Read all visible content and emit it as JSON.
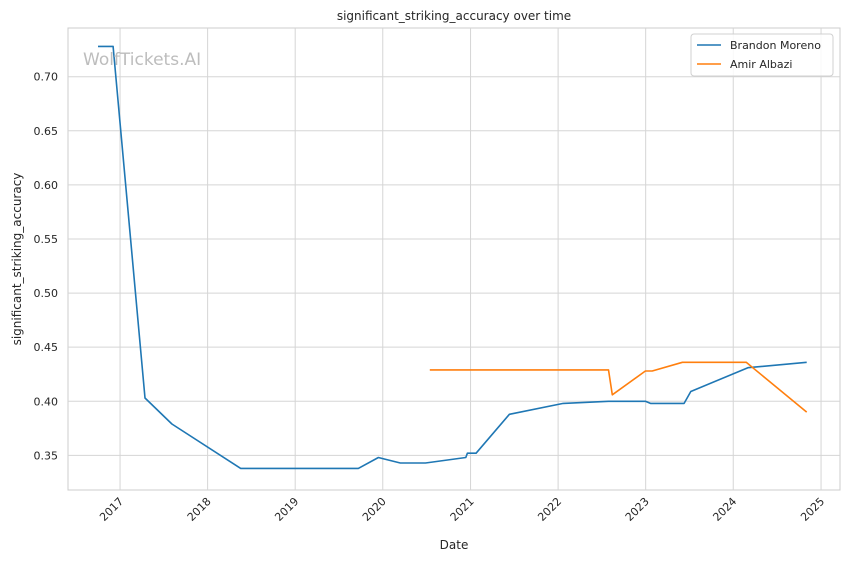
{
  "chart_data": {
    "type": "line",
    "title": "significant_striking_accuracy over time",
    "xlabel": "Date",
    "ylabel": "significant_striking_accuracy",
    "watermark": "WolfTickets.AI",
    "x_axis_type": "date",
    "xlim": [
      "2016-05-29",
      "2025-03-21"
    ],
    "ylim": [
      0.318,
      0.745
    ],
    "x_ticks": [
      "2017",
      "2018",
      "2019",
      "2020",
      "2021",
      "2022",
      "2023",
      "2024",
      "2025"
    ],
    "y_ticks": [
      0.35,
      0.4,
      0.45,
      0.5,
      0.55,
      0.6,
      0.65,
      0.7
    ],
    "y_tick_labels": [
      "0.35",
      "0.40",
      "0.45",
      "0.50",
      "0.55",
      "0.60",
      "0.65",
      "0.70"
    ],
    "grid": true,
    "legend_position": "top-right",
    "series": [
      {
        "name": "Brandon Moreno",
        "color": "#1f77b4",
        "points": [
          [
            "2016-10-01",
            0.728
          ],
          [
            "2016-12-03",
            0.728
          ],
          [
            "2017-04-15",
            0.403
          ],
          [
            "2017-08-05",
            0.379
          ],
          [
            "2018-05-19",
            0.338
          ],
          [
            "2019-09-21",
            0.338
          ],
          [
            "2019-12-14",
            0.348
          ],
          [
            "2020-03-14",
            0.343
          ],
          [
            "2020-06-27",
            0.343
          ],
          [
            "2020-12-12",
            0.348
          ],
          [
            "2020-12-19",
            0.352
          ],
          [
            "2021-01-24",
            0.352
          ],
          [
            "2021-06-12",
            0.388
          ],
          [
            "2022-01-22",
            0.398
          ],
          [
            "2022-07-30",
            0.4
          ],
          [
            "2022-12-31",
            0.4
          ],
          [
            "2023-01-21",
            0.398
          ],
          [
            "2023-06-10",
            0.398
          ],
          [
            "2023-07-08",
            0.409
          ],
          [
            "2024-03-02",
            0.431
          ],
          [
            "2024-11-02",
            0.436
          ]
        ]
      },
      {
        "name": "Amir Albazi",
        "color": "#ff7f0e",
        "points": [
          [
            "2020-07-15",
            0.429
          ],
          [
            "2022-07-30",
            0.429
          ],
          [
            "2022-08-15",
            0.406
          ],
          [
            "2022-12-31",
            0.428
          ],
          [
            "2023-01-28",
            0.428
          ],
          [
            "2023-06-03",
            0.436
          ],
          [
            "2024-02-24",
            0.436
          ],
          [
            "2024-11-02",
            0.39
          ]
        ]
      }
    ]
  }
}
